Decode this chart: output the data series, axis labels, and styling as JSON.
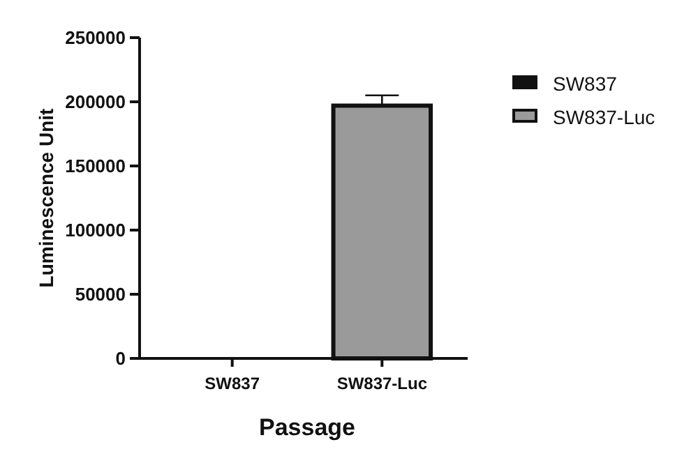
{
  "chart_data": {
    "type": "bar",
    "xlabel": "Passage",
    "ylabel": "Luminescence Unit",
    "categories": [
      "SW837",
      "SW837-Luc"
    ],
    "series": [
      {
        "name": "SW837",
        "color": "#111111",
        "values": [
          0,
          null
        ]
      },
      {
        "name": "SW837-Luc",
        "color": "#9a9a9a",
        "values": [
          null,
          197000
        ],
        "errors": [
          null,
          8000
        ]
      }
    ],
    "ylim": [
      0,
      250000
    ],
    "yticks": [
      0,
      50000,
      100000,
      150000,
      200000,
      250000
    ],
    "grid": false,
    "legend": "right"
  }
}
